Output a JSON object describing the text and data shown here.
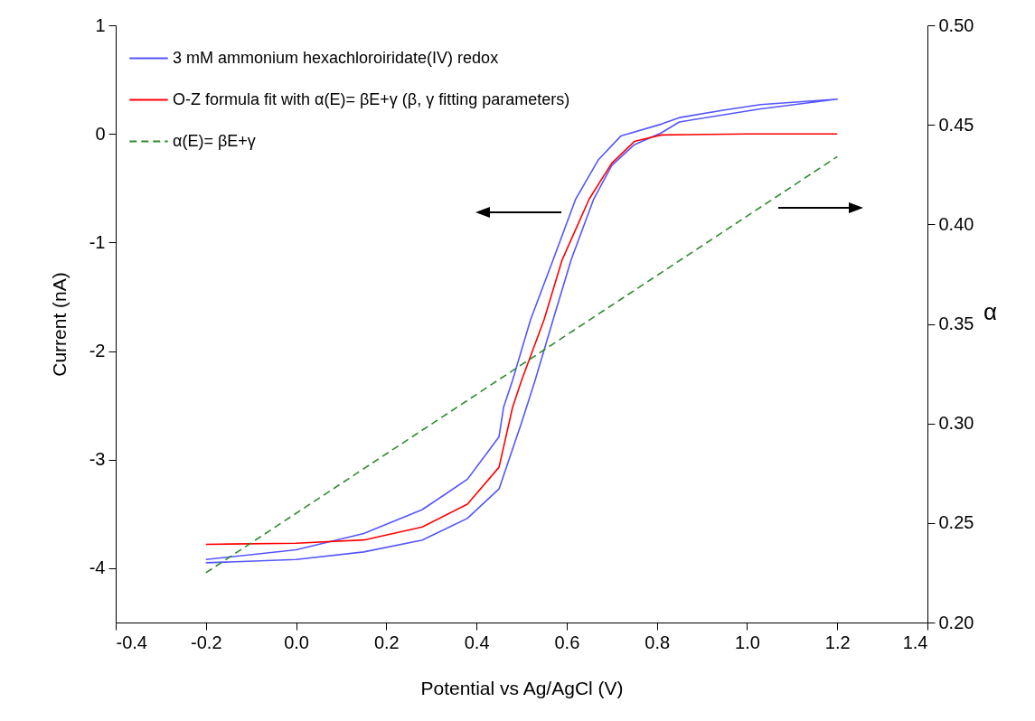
{
  "chart_data": {
    "type": "line",
    "xlabel": "Potential vs Ag/AgCl (V)",
    "ylabel": "Current (nA)",
    "y2label": "α",
    "xlim": [
      -0.4,
      1.4
    ],
    "xticks": [
      -0.4,
      -0.2,
      {
        "value": 0,
        "label": "0.0"
      },
      0.2,
      0.4,
      0.6,
      0.8,
      {
        "value": 1,
        "label": "1.0"
      },
      1.2,
      1.4
    ],
    "ylim": [
      -4.5,
      1
    ],
    "yticks": [
      -4,
      -3,
      -2,
      -1,
      0,
      1
    ],
    "y2lim": [
      0.2,
      0.5
    ],
    "y2ticks": [
      {
        "value": 0.2,
        "label": "0.20"
      },
      0.25,
      {
        "value": 0.3,
        "label": "0.30"
      },
      0.35,
      {
        "value": 0.4,
        "label": "0.40"
      },
      0.45,
      {
        "value": 0.5,
        "label": "0.50"
      }
    ],
    "legend": "top left",
    "grid": false,
    "series": [
      {
        "name": "3 mM ammonium hexachloroiridate(IV) redox",
        "color": "#5555ff",
        "line_style": "solid",
        "x": [
          -0.2,
          0.0,
          0.15,
          0.28,
          0.38,
          0.45,
          0.5,
          0.53,
          0.57,
          0.61,
          0.66,
          0.7,
          0.75,
          0.81,
          0.85,
          1.03,
          1.2,
          1.03,
          0.95,
          0.85,
          0.81,
          0.72,
          0.67,
          0.62,
          0.57,
          0.52,
          0.48,
          0.46,
          0.45,
          0.38,
          0.28,
          0.15,
          0.0,
          -0.2
        ],
        "values": [
          -3.95,
          -3.92,
          -3.85,
          -3.74,
          -3.54,
          -3.27,
          -2.66,
          -2.27,
          -1.71,
          -1.16,
          -0.6,
          -0.29,
          -0.1,
          0.01,
          0.11,
          0.23,
          0.32,
          0.27,
          0.22,
          0.15,
          0.09,
          -0.02,
          -0.24,
          -0.6,
          -1.16,
          -1.71,
          -2.27,
          -2.52,
          -2.79,
          -3.18,
          -3.46,
          -3.68,
          -3.83,
          -3.92
        ]
      },
      {
        "name": "O-Z formula fit with α(E)= βE+γ  (β, γ fitting parameters)",
        "color": "#ff0000",
        "line_style": "solid",
        "x": [
          -0.2,
          0.0,
          0.15,
          0.28,
          0.38,
          0.45,
          0.48,
          0.5,
          0.55,
          0.59,
          0.65,
          0.7,
          0.75,
          0.81,
          1.0,
          1.2
        ],
        "values": [
          -3.78,
          -3.77,
          -3.74,
          -3.62,
          -3.41,
          -3.07,
          -2.52,
          -2.27,
          -1.71,
          -1.16,
          -0.6,
          -0.27,
          -0.07,
          -0.01,
          0,
          0
        ]
      },
      {
        "name": "α(E)= βE+γ",
        "color": "#2e8b2e",
        "line_style": "dashed",
        "axis": "y2",
        "x": [
          -0.2,
          1.2
        ],
        "values": [
          0.225,
          0.434
        ]
      }
    ]
  }
}
